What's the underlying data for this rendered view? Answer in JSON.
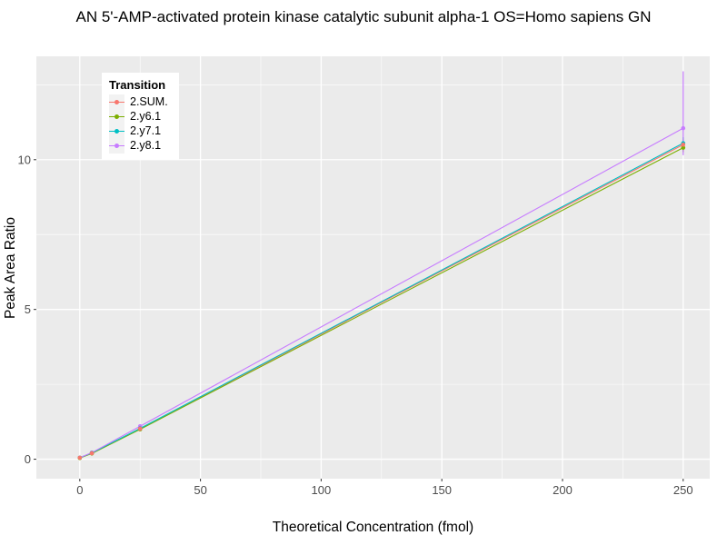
{
  "chart_data": {
    "type": "line",
    "title": "AN 5'-AMP-activated protein kinase catalytic subunit alpha-1 OS=Homo sapiens GN",
    "xlabel": "Theoretical Concentration (fmol)",
    "ylabel": "Peak Area Ratio",
    "legend_title": "Transition",
    "legend_position": "inside-top-left",
    "panel_bg": "#EBEBEB",
    "grid": "white major and minor gridlines on gray panel",
    "tick_label_color": "#4D4D4D",
    "xlim": [
      -18,
      261
    ],
    "ylim": [
      -0.65,
      13.45
    ],
    "x_ticks": [
      0,
      50,
      100,
      150,
      200,
      250
    ],
    "y_ticks": [
      0,
      5,
      10
    ],
    "x": [
      0,
      5,
      25,
      250
    ],
    "series": [
      {
        "name": "2.SUM.",
        "color": "#F8766D",
        "values": [
          0.05,
          0.2,
          1.02,
          10.5
        ],
        "error_bar": {
          "x": 250,
          "ymin": 10.3,
          "ymax": 10.7
        }
      },
      {
        "name": "2.y6.1",
        "color": "#7CAE00",
        "values": [
          0.04,
          0.19,
          1.0,
          10.4
        ],
        "error_bar": {
          "x": 250,
          "ymin": 10.25,
          "ymax": 10.6
        }
      },
      {
        "name": "2.y7.1",
        "color": "#00BFC4",
        "values": [
          0.05,
          0.21,
          1.03,
          10.55
        ],
        "error_bar": {
          "x": 250,
          "ymin": 10.4,
          "ymax": 10.75
        }
      },
      {
        "name": "2.y8.1",
        "color": "#C77CFF",
        "values": [
          0.05,
          0.22,
          1.1,
          11.05
        ],
        "error_bar": {
          "x": 250,
          "ymin": 10.15,
          "ymax": 12.95
        }
      }
    ]
  }
}
